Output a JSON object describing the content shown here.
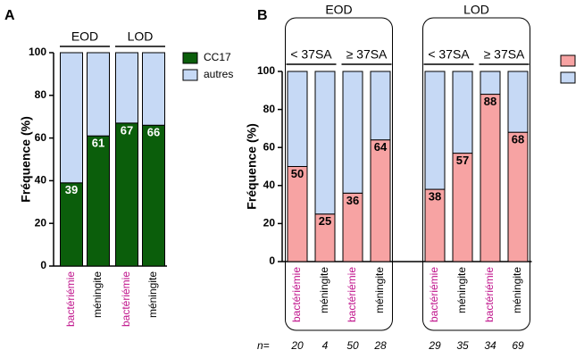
{
  "chart_data": [
    {
      "type": "bar",
      "stacked": true,
      "panel": "A",
      "ylabel": "Fréquence (%)",
      "groups": [
        {
          "label": "EOD",
          "size": 2
        },
        {
          "label": "LOD",
          "size": 2
        }
      ],
      "categories": [
        "bactériémie",
        "méningite",
        "bactériémie",
        "méningite"
      ],
      "category_colors": [
        "#c0148c",
        "#000000",
        "#c0148c",
        "#000000"
      ],
      "series": [
        {
          "name": "CC17",
          "color": "#0b5e0b",
          "values": [
            39,
            61,
            67,
            66
          ],
          "show_values": true
        },
        {
          "name": "autres",
          "color": "#c6d9f5",
          "values": [
            61,
            39,
            33,
            34
          ]
        }
      ],
      "ylim": [
        0,
        100
      ],
      "yticks": [
        0,
        20,
        40,
        60,
        80,
        100
      ]
    },
    {
      "type": "bar",
      "stacked": true,
      "panel": "B",
      "ylabel": "Fréquence (%)",
      "groups": [
        {
          "label": "EOD",
          "subgroups": [
            {
              "label": "< 37SA",
              "size": 2
            },
            {
              "label": "≥ 37SA",
              "size": 2
            }
          ]
        },
        {
          "label": "LOD",
          "subgroups": [
            {
              "label": "< 37SA",
              "size": 2
            },
            {
              "label": "≥ 37SA",
              "size": 2
            }
          ]
        }
      ],
      "categories": [
        "bactériémie",
        "méningite",
        "bactériémie",
        "méningite",
        "bactériémie",
        "méningite",
        "bactériémie",
        "méningite"
      ],
      "category_colors": [
        "#c0148c",
        "#000000",
        "#c0148c",
        "#000000",
        "#c0148c",
        "#000000",
        "#c0148c",
        "#000000"
      ],
      "series": [
        {
          "color": "#f7a3a3",
          "values": [
            50,
            25,
            36,
            64,
            38,
            57,
            88,
            68
          ],
          "show_values": true
        },
        {
          "color": "#c6d9f5",
          "values": [
            50,
            75,
            64,
            36,
            62,
            43,
            12,
            32
          ]
        }
      ],
      "n_label": "n=",
      "n": [
        20,
        4,
        50,
        28,
        29,
        35,
        34,
        69
      ],
      "ylim": [
        0,
        100
      ],
      "yticks": [
        0,
        20,
        40,
        60,
        80,
        100
      ]
    }
  ]
}
